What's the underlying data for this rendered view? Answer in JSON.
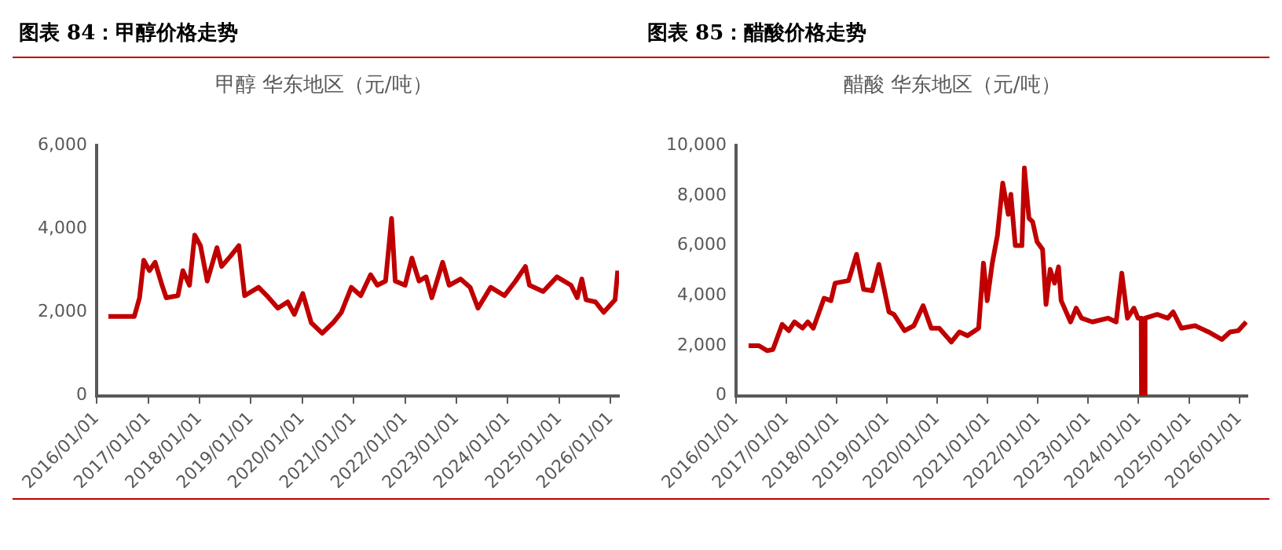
{
  "chart_data": [
    {
      "type": "line",
      "title": "图表 84：甲醇价格走势",
      "subtitle": "甲醇 华东地区（元/吨）",
      "xlim": [
        "2016-01-01",
        "2026-03-01"
      ],
      "xticks": [
        {
          "value": "2016-01-01",
          "label": "2016/01/01"
        },
        {
          "value": "2017-01-01",
          "label": "2017/01/01"
        },
        {
          "value": "2018-01-01",
          "label": "2018/01/01"
        },
        {
          "value": "2019-01-01",
          "label": "2019/01/01"
        },
        {
          "value": "2020-01-01",
          "label": "2020/01/01"
        },
        {
          "value": "2021-01-01",
          "label": "2021/01/01"
        },
        {
          "value": "2022-01-01",
          "label": "2022/01/01"
        },
        {
          "value": "2023-01-01",
          "label": "2023/01/01"
        },
        {
          "value": "2024-01-01",
          "label": "2024/01/01"
        },
        {
          "value": "2025-01-01",
          "label": "2025/01/01"
        },
        {
          "value": "2026-01-01",
          "label": "2026/01/01"
        }
      ],
      "ylim": [
        0,
        6000
      ],
      "yticks": [
        0,
        {
          "value": 2000,
          "label": "2,000"
        },
        {
          "value": 4000,
          "label": "4,000"
        },
        {
          "value": 6000,
          "label": "6,000"
        }
      ],
      "x": [
        "2016-03-25",
        "2016-09-25",
        "2016-11-01",
        "2016-12-01",
        "2017-01-10",
        "2017-02-20",
        "2017-04-10",
        "2017-05-10",
        "2017-08-01",
        "2017-09-05",
        "2017-10-22",
        "2017-11-28",
        "2018-01-08",
        "2018-02-25",
        "2018-05-05",
        "2018-06-07",
        "2018-08-10",
        "2018-10-08",
        "2018-11-18",
        "2019-02-25",
        "2019-04-25",
        "2019-07-12",
        "2019-09-20",
        "2019-11-06",
        "2020-01-05",
        "2020-03-05",
        "2020-05-22",
        "2020-08-07",
        "2020-10-05",
        "2020-12-15",
        "2021-02-20",
        "2021-05-01",
        "2021-06-18",
        "2021-08-15",
        "2021-09-27",
        "2021-10-23",
        "2022-01-01",
        "2022-02-18",
        "2022-04-10",
        "2022-05-30",
        "2022-07-10",
        "2022-09-25",
        "2022-11-10",
        "2023-01-30",
        "2023-04-08",
        "2023-06-03",
        "2023-09-01",
        "2023-12-08",
        "2024-02-25",
        "2024-05-05",
        "2024-06-03",
        "2024-09-08",
        "2024-12-15",
        "2025-03-25",
        "2025-05-08",
        "2025-06-10",
        "2025-07-10",
        "2025-09-15",
        "2025-11-12",
        "2026-02-01",
        "2026-02-20"
      ],
      "series": [
        {
          "color": "#c00000",
          "values": [
            1900,
            1900,
            2350,
            3250,
            3000,
            3200,
            2650,
            2350,
            2400,
            3000,
            2650,
            3850,
            3600,
            2750,
            3550,
            3100,
            3350,
            3600,
            2400,
            2600,
            2400,
            2100,
            2250,
            1950,
            2450,
            1750,
            1500,
            1750,
            2000,
            2600,
            2400,
            2900,
            2650,
            2750,
            4250,
            2750,
            2650,
            3300,
            2750,
            2850,
            2350,
            3200,
            2650,
            2800,
            2600,
            2100,
            2600,
            2400,
            2750,
            3100,
            2650,
            2500,
            2850,
            2650,
            2350,
            2800,
            2300,
            2250,
            2000,
            2300,
            3000
          ]
        }
      ]
    },
    {
      "type": "line",
      "title": "图表 85：醋酸价格走势",
      "subtitle": "醋酸 华东地区（元/吨）",
      "xlim": [
        "2016-01-01",
        "2026-03-01"
      ],
      "xticks": [
        {
          "value": "2016-01-01",
          "label": "2016/01/01"
        },
        {
          "value": "2017-01-01",
          "label": "2017/01/01"
        },
        {
          "value": "2018-01-01",
          "label": "2018/01/01"
        },
        {
          "value": "2019-01-01",
          "label": "2019/01/01"
        },
        {
          "value": "2020-01-01",
          "label": "2020/01/01"
        },
        {
          "value": "2021-01-01",
          "label": "2021/01/01"
        },
        {
          "value": "2022-01-01",
          "label": "2022/01/01"
        },
        {
          "value": "2023-01-01",
          "label": "2023/01/01"
        },
        {
          "value": "2024-01-01",
          "label": "2024/01/01"
        },
        {
          "value": "2025-01-01",
          "label": "2025/01/01"
        },
        {
          "value": "2026-01-01",
          "label": "2026/01/01"
        }
      ],
      "ylim": [
        0,
        10000
      ],
      "yticks": [
        0,
        {
          "value": 2000,
          "label": "2,000"
        },
        {
          "value": 4000,
          "label": "4,000"
        },
        {
          "value": 6000,
          "label": "6,000"
        },
        {
          "value": 8000,
          "label": "8,000"
        },
        {
          "value": 10000,
          "label": "10,000"
        }
      ],
      "x": [
        "2016-04-01",
        "2016-06-15",
        "2016-08-15",
        "2016-09-25",
        "2016-12-01",
        "2017-01-18",
        "2017-02-28",
        "2017-04-28",
        "2017-06-05",
        "2017-07-15",
        "2017-10-01",
        "2017-11-20",
        "2017-12-20",
        "2018-03-28",
        "2018-05-25",
        "2018-07-15",
        "2018-09-15",
        "2018-11-03",
        "2019-01-15",
        "2019-02-20",
        "2019-05-08",
        "2019-07-15",
        "2019-09-20",
        "2019-11-18",
        "2020-01-15",
        "2020-04-12",
        "2020-06-10",
        "2020-08-07",
        "2020-10-27",
        "2020-12-01",
        "2020-12-28",
        "2021-02-03",
        "2021-03-12",
        "2021-04-20",
        "2021-05-30",
        "2021-06-18",
        "2021-07-20",
        "2021-09-06",
        "2021-09-24",
        "2021-10-27",
        "2021-11-23",
        "2021-12-25",
        "2022-02-03",
        "2022-02-28",
        "2022-03-30",
        "2022-05-01",
        "2022-05-30",
        "2022-06-18",
        "2022-08-25",
        "2022-10-05",
        "2022-11-13",
        "2023-01-30",
        "2023-05-25",
        "2023-07-22",
        "2023-09-01",
        "2023-10-12",
        "2023-11-28",
        "2023-12-28",
        "2024-01-20",
        "2024-01-22",
        "2024-02-15",
        "2024-02-17",
        "2024-05-15",
        "2024-07-30",
        "2024-09-08",
        "2024-11-06",
        "2025-02-14",
        "2025-05-22",
        "2025-08-28",
        "2025-10-26",
        "2025-12-25",
        "2026-02-20"
      ],
      "series": [
        {
          "color": "#c00000",
          "values": [
            2000,
            2000,
            1800,
            1850,
            2850,
            2600,
            2950,
            2700,
            2950,
            2700,
            3900,
            3800,
            4500,
            4600,
            5650,
            4250,
            4200,
            5250,
            3350,
            3250,
            2600,
            2800,
            3600,
            2700,
            2700,
            2150,
            2550,
            2400,
            2700,
            5300,
            3800,
            5300,
            6400,
            8500,
            7250,
            8050,
            6000,
            6000,
            9100,
            7100,
            6950,
            6150,
            5850,
            3650,
            5050,
            4500,
            5150,
            3800,
            2950,
            3500,
            3100,
            2950,
            3100,
            2950,
            4900,
            3100,
            3500,
            3100,
            3100,
            0,
            0,
            3100,
            3250,
            3100,
            3350,
            2700,
            2800,
            2550,
            2250,
            2550,
            2600,
            2950
          ]
        }
      ]
    }
  ]
}
